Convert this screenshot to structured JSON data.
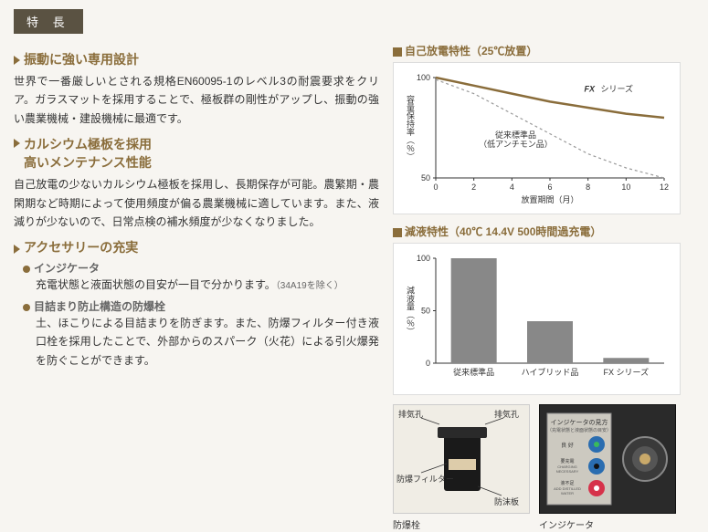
{
  "badge": "特 長",
  "features": [
    {
      "title": "振動に強い専用設計",
      "body": "世界で一番厳しいとされる規格EN60095-1のレベル3の耐震要求をクリア。ガラスマットを採用することで、極板群の剛性がアップし、振動の強い農業機械・建設機械に最適です。"
    },
    {
      "title": "カルシウム極板を採用\n高いメンテナンス性能",
      "body": "自己放電の少ないカルシウム極板を採用し、長期保存が可能。農繁期・農閑期など時期によって使用頻度が偏る農業機械に適しています。また、液減りが少ないので、日常点検の補水頻度が少なくなりました。"
    },
    {
      "title": "アクセサリーの充実",
      "body": ""
    }
  ],
  "accessories": [
    {
      "head": "インジケータ",
      "body": "充電状態と液面状態の目安が一目で分かります。",
      "note": "（34A19を除く）"
    },
    {
      "head": "目詰まり防止構造の防爆栓",
      "body": "土、ほこりによる目詰まりを防ぎます。また、防爆フィルター付き液口栓を採用したことで、外部からのスパーク（火花）による引火爆発を防ぐことができます。"
    }
  ],
  "chart1": {
    "title": "自己放電特性（25℃放置）",
    "ylabel": "容量保持率（％）",
    "xlabel": "放置期間（月）",
    "ylim": [
      50,
      100
    ],
    "ytick_step": 50,
    "xlim": [
      0,
      12
    ],
    "xtick_step": 2,
    "series_main": {
      "label": "FX シリーズ",
      "color": "#8a6d3b",
      "points": [
        [
          0,
          100
        ],
        [
          2,
          96
        ],
        [
          4,
          92
        ],
        [
          6,
          88
        ],
        [
          8,
          85
        ],
        [
          10,
          82
        ],
        [
          12,
          80
        ]
      ]
    },
    "series_dash": {
      "label": "従来標準品（低アンチモン品）",
      "color": "#999",
      "points": [
        [
          0,
          99
        ],
        [
          2,
          92
        ],
        [
          4,
          82
        ],
        [
          6,
          72
        ],
        [
          8,
          62
        ],
        [
          10,
          55
        ],
        [
          12,
          50
        ]
      ]
    },
    "bg": "#ffffff"
  },
  "chart2": {
    "title": "減液特性（40℃ 14.4V 500時間過充電）",
    "ylabel": "減液量（％）",
    "categories": [
      "従来標準品",
      "ハイブリッド品",
      "FX シリーズ"
    ],
    "values": [
      100,
      40,
      5
    ],
    "ylim": [
      0,
      100
    ],
    "ytick_step": 50,
    "bar_color": "#888888",
    "bg": "#ffffff"
  },
  "diagram": {
    "caption": "防爆栓",
    "labels": {
      "exhaust_l": "排気孔",
      "exhaust_r": "排気孔",
      "filter": "防爆フィルター",
      "foam": "防沫板"
    }
  },
  "indicator": {
    "caption": "インジケータ",
    "title": "インジケータの見方",
    "subtitle": "（充電状態と液面状態の目安）",
    "states": [
      "良 好",
      "要充電\nCHARGING\nNECESSARY",
      "液不足\nADD DISTILLED\nWATER"
    ]
  }
}
